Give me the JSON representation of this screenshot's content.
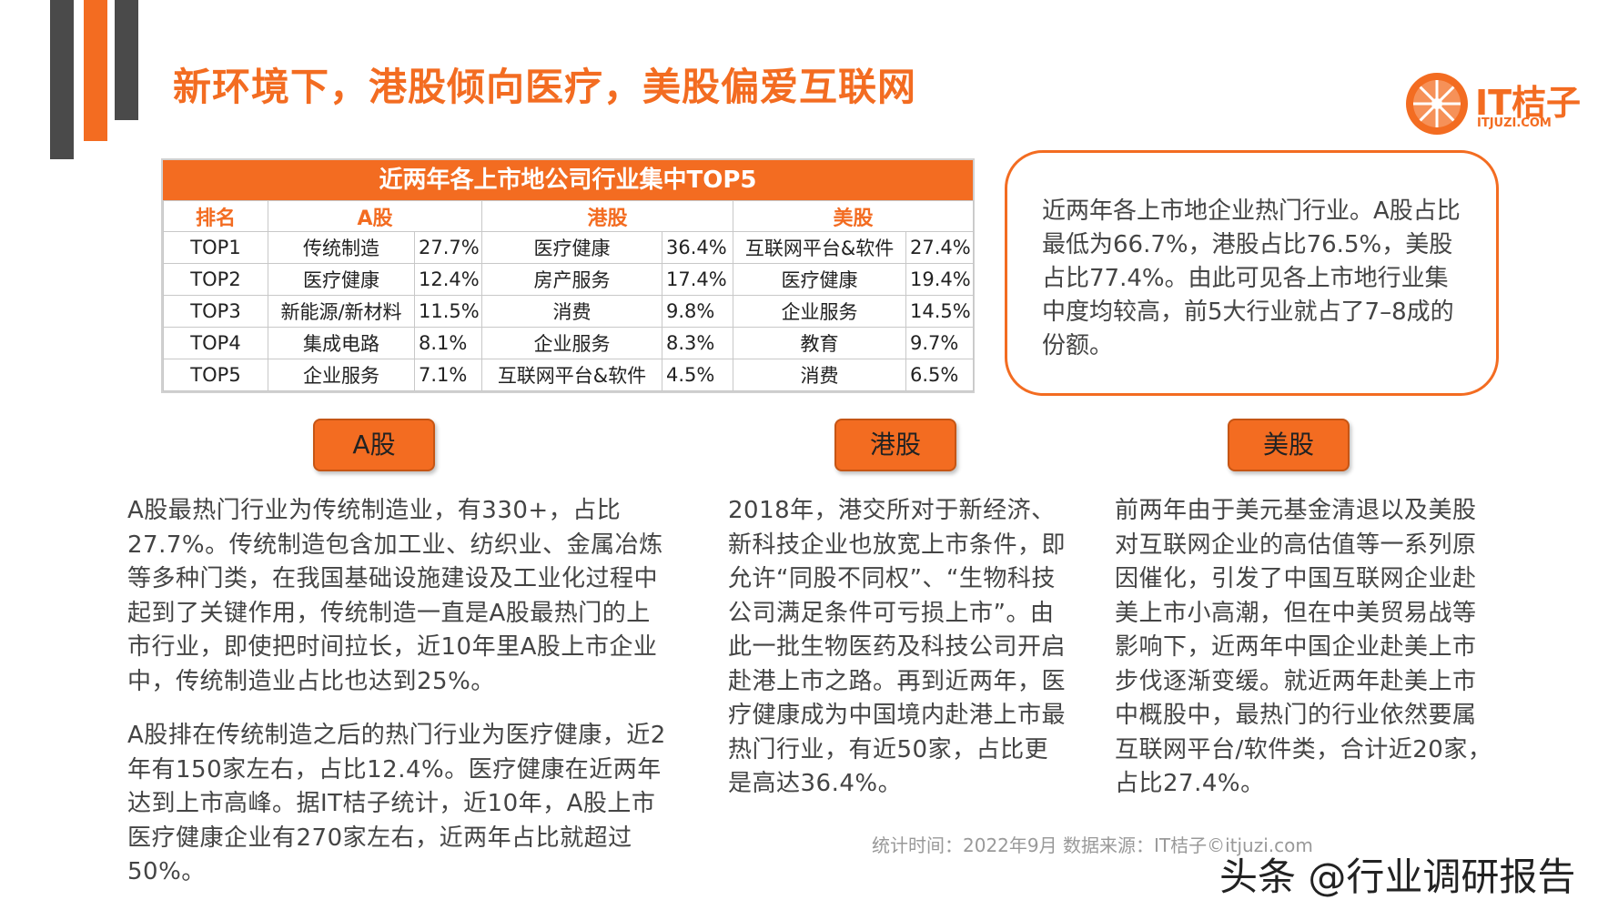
{
  "header": {
    "title": "新环境下，港股倾向医疗，美股偏爱互联网"
  },
  "logo": {
    "brand": "IT桔子",
    "domain": "ITJUZI.COM",
    "color": "#f36c21"
  },
  "table": {
    "title": "近两年各上市地公司行业集中TOP5",
    "headers": [
      "排名",
      "A股",
      "港股",
      "美股"
    ],
    "rows": [
      {
        "rank": "TOP1",
        "a": "传统制造",
        "a_pct": "27.7%",
        "hk": "医疗健康",
        "hk_pct": "36.4%",
        "us": "互联网平台&软件",
        "us_pct": "27.4%"
      },
      {
        "rank": "TOP2",
        "a": "医疗健康",
        "a_pct": "12.4%",
        "hk": "房产服务",
        "hk_pct": "17.4%",
        "us": "医疗健康",
        "us_pct": "19.4%"
      },
      {
        "rank": "TOP3",
        "a": "新能源/新材料",
        "a_pct": "11.5%",
        "hk": "消费",
        "hk_pct": "9.8%",
        "us": "企业服务",
        "us_pct": "14.5%"
      },
      {
        "rank": "TOP4",
        "a": "集成电路",
        "a_pct": "8.1%",
        "hk": "企业服务",
        "hk_pct": "8.3%",
        "us": "教育",
        "us_pct": "9.7%"
      },
      {
        "rank": "TOP5",
        "a": "企业服务",
        "a_pct": "7.1%",
        "hk": "互联网平台&软件",
        "hk_pct": "4.5%",
        "us": "消费",
        "us_pct": "6.5%"
      }
    ]
  },
  "callout": {
    "text": "近两年各上市地企业热门行业。A股占比最低为66.7%，港股占比76.5%，美股占比77.4%。由此可见各上市地行业集中度均较高，前5大行业就占了7–8成的份额。"
  },
  "sections": {
    "a": {
      "label": "A股",
      "p1": "A股最热门行业为传统制造业，有330+，占比27.7%。传统制造包含加工业、纺织业、金属冶炼等多种门类，在我国基础设施建设及工业化过程中起到了关键作用，传统制造一直是A股最热门的上市行业，即使把时间拉长，近10年里A股上市企业中，传统制造业占比也达到25%。",
      "p2": "A股排在传统制造之后的热门行业为医疗健康，近2年有150家左右，占比12.4%。医疗健康在近两年达到上市高峰。据IT桔子统计，近10年，A股上市医疗健康企业有270家左右，近两年占比就超过50%。"
    },
    "hk": {
      "label": "港股",
      "p1": "2018年，港交所对于新经济、新科技企业也放宽上市条件，即允许“同股不同权”、“生物科技公司满足条件可亏损上市”。由此一批生物医药及科技公司开启赴港上市之路。再到近两年，医疗健康成为中国境内赴港上市最热门行业，有近50家，占比更是高达36.4%。"
    },
    "us": {
      "label": "美股",
      "p1": "前两年由于美元基金清退以及美股对互联网企业的高估值等一系列原因催化，引发了中国互联网企业赴美上市小高潮，但在中美贸易战等影响下，近两年中国企业赴美上市步伐逐渐变缓。就近两年赴美上市中概股中，最热门的行业依然要属互联网平台/软件类，合计近20家，占比27.4%。"
    }
  },
  "footer": {
    "note": "统计时间：2022年9月  数据来源：IT桔子©itjuzi.com",
    "watermark": "头条 @行业调研报告"
  }
}
